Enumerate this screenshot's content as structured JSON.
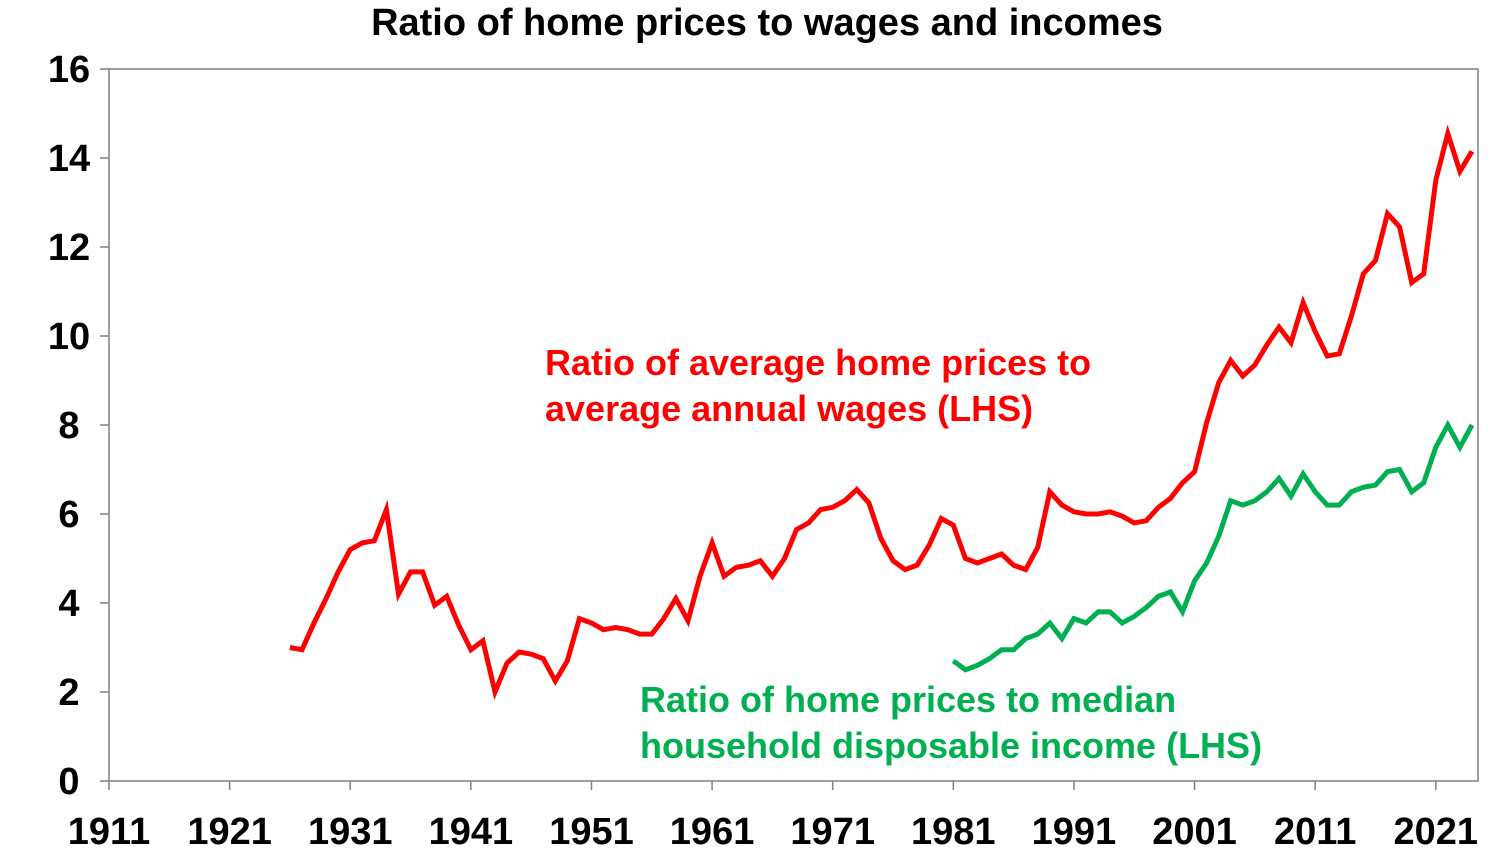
{
  "chart_data": {
    "type": "line",
    "title": "Ratio of home prices to wages and incomes",
    "xlabel": "",
    "ylabel": "",
    "xlim": [
      1911,
      2024.5
    ],
    "ylim": [
      0,
      16
    ],
    "x_ticks": [
      "1911",
      "1921",
      "1931",
      "1941",
      "1951",
      "1961",
      "1971",
      "1981",
      "1991",
      "2001",
      "2011",
      "2021"
    ],
    "y_ticks": [
      "0",
      "2",
      "4",
      "6",
      "8",
      "10",
      "12",
      "14",
      "16"
    ],
    "grid": false,
    "series": [
      {
        "name": "Ratio of average home prices to average annual wages (LHS)",
        "label_lines": [
          "Ratio of average home prices to",
          "average annual wages (LHS)"
        ],
        "color": "#ff0000",
        "x": [
          1926,
          1927,
          1928,
          1929,
          1930,
          1931,
          1932,
          1933,
          1934,
          1935,
          1936,
          1937,
          1938,
          1939,
          1940,
          1941,
          1942,
          1943,
          1944,
          1945,
          1946,
          1947,
          1948,
          1949,
          1950,
          1951,
          1952,
          1953,
          1954,
          1955,
          1956,
          1957,
          1958,
          1959,
          1960,
          1961,
          1962,
          1963,
          1964,
          1965,
          1966,
          1967,
          1968,
          1969,
          1970,
          1971,
          1972,
          1973,
          1974,
          1975,
          1976,
          1977,
          1978,
          1979,
          1980,
          1981,
          1982,
          1983,
          1984,
          1985,
          1986,
          1987,
          1988,
          1989,
          1990,
          1991,
          1992,
          1993,
          1994,
          1995,
          1996,
          1997,
          1998,
          1999,
          2000,
          2001,
          2002,
          2003,
          2004,
          2005,
          2006,
          2007,
          2008,
          2009,
          2010,
          2011,
          2012,
          2013,
          2014,
          2015,
          2016,
          2017,
          2018,
          2019,
          2020,
          2021,
          2022,
          2023,
          2024
        ],
        "y": [
          3.0,
          2.95,
          3.55,
          4.1,
          4.7,
          5.2,
          5.35,
          5.4,
          6.1,
          4.2,
          4.7,
          4.7,
          3.95,
          4.15,
          3.5,
          2.95,
          3.15,
          2.0,
          2.65,
          2.9,
          2.85,
          2.75,
          2.25,
          2.7,
          3.65,
          3.55,
          3.4,
          3.45,
          3.4,
          3.3,
          3.3,
          3.65,
          4.1,
          3.6,
          4.6,
          5.35,
          4.6,
          4.8,
          4.85,
          4.95,
          4.6,
          5.0,
          5.65,
          5.8,
          6.1,
          6.15,
          6.3,
          6.55,
          6.25,
          5.45,
          4.95,
          4.75,
          4.85,
          5.3,
          5.9,
          5.75,
          5.0,
          4.9,
          5.0,
          5.1,
          4.85,
          4.75,
          5.25,
          6.5,
          6.2,
          6.05,
          6.0,
          6.0,
          6.05,
          5.95,
          5.8,
          5.85,
          6.15,
          6.35,
          6.7,
          6.95,
          8.05,
          8.95,
          9.45,
          9.1,
          9.35,
          9.8,
          10.2,
          9.85,
          10.75,
          10.1,
          9.55,
          9.6,
          10.45,
          11.4,
          11.7,
          12.75,
          12.45,
          11.2,
          11.4,
          13.5,
          14.55,
          13.7,
          14.15
        ]
      },
      {
        "name": "Ratio of home prices to median household disposable income (LHS)",
        "label_lines": [
          "Ratio of home prices to median",
          "household disposable income (LHS)"
        ],
        "color": "#00b050",
        "x": [
          1981,
          1982,
          1983,
          1984,
          1985,
          1986,
          1987,
          1988,
          1989,
          1990,
          1991,
          1992,
          1993,
          1994,
          1995,
          1996,
          1997,
          1998,
          1999,
          2000,
          2001,
          2002,
          2003,
          2004,
          2005,
          2006,
          2007,
          2008,
          2009,
          2010,
          2011,
          2012,
          2013,
          2014,
          2015,
          2016,
          2017,
          2018,
          2019,
          2020,
          2021,
          2022,
          2023,
          2024
        ],
        "y": [
          2.7,
          2.5,
          2.6,
          2.75,
          2.95,
          2.95,
          3.2,
          3.3,
          3.55,
          3.2,
          3.65,
          3.55,
          3.8,
          3.8,
          3.55,
          3.7,
          3.9,
          4.15,
          4.25,
          3.8,
          4.5,
          4.9,
          5.5,
          6.3,
          6.2,
          6.3,
          6.5,
          6.8,
          6.4,
          6.9,
          6.5,
          6.2,
          6.2,
          6.5,
          6.6,
          6.65,
          6.95,
          7.0,
          6.5,
          6.7,
          7.5,
          8.0,
          7.5,
          8.0
        ]
      }
    ]
  }
}
